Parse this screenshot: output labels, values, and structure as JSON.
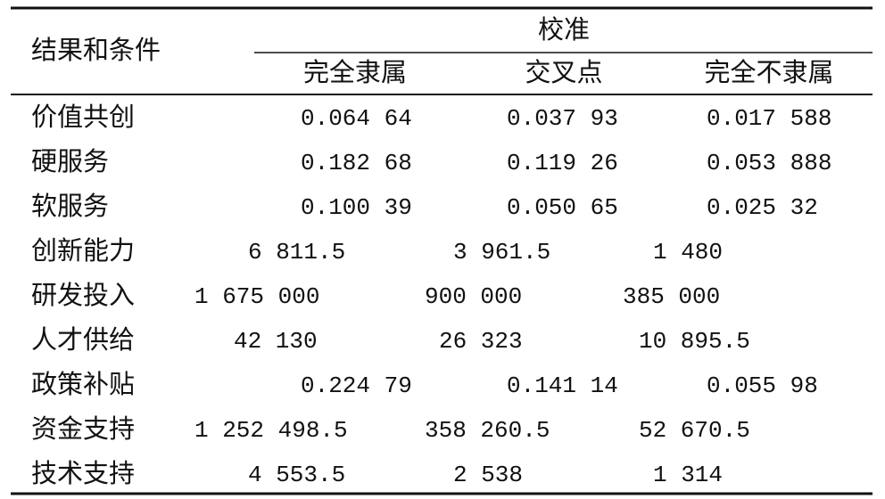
{
  "table": {
    "header": {
      "condition_label": "结果和条件",
      "group": "校准",
      "columns": [
        "完全隶属",
        "交叉点",
        "完全不隶属"
      ]
    },
    "rows": [
      {
        "label": "价值共创",
        "cells": [
          "0.064 64",
          "0.037 93",
          "0.017 588"
        ]
      },
      {
        "label": "硬服务",
        "cells": [
          "0.182 68",
          "0.119 26",
          "0.053 888"
        ]
      },
      {
        "label": "软服务",
        "cells": [
          "0.100 39",
          "0.050 65",
          "0.025 32"
        ]
      },
      {
        "label": "创新能力",
        "cells": [
          "6 811.5",
          "3 961.5",
          "1 480"
        ]
      },
      {
        "label": "研发投入",
        "cells": [
          "1 675 000",
          "900 000",
          "385 000"
        ]
      },
      {
        "label": "人才供给",
        "cells": [
          "42 130",
          "26 323",
          "10 895.5"
        ]
      },
      {
        "label": "政策补贴",
        "cells": [
          "0.224 79",
          "0.141 14",
          "0.055 98"
        ]
      },
      {
        "label": "资金支持",
        "cells": [
          "1 252 498.5",
          "358 260.5",
          "52 670.5"
        ]
      },
      {
        "label": "技术支持",
        "cells": [
          "4 553.5",
          "2 538",
          "1 314"
        ]
      }
    ]
  }
}
